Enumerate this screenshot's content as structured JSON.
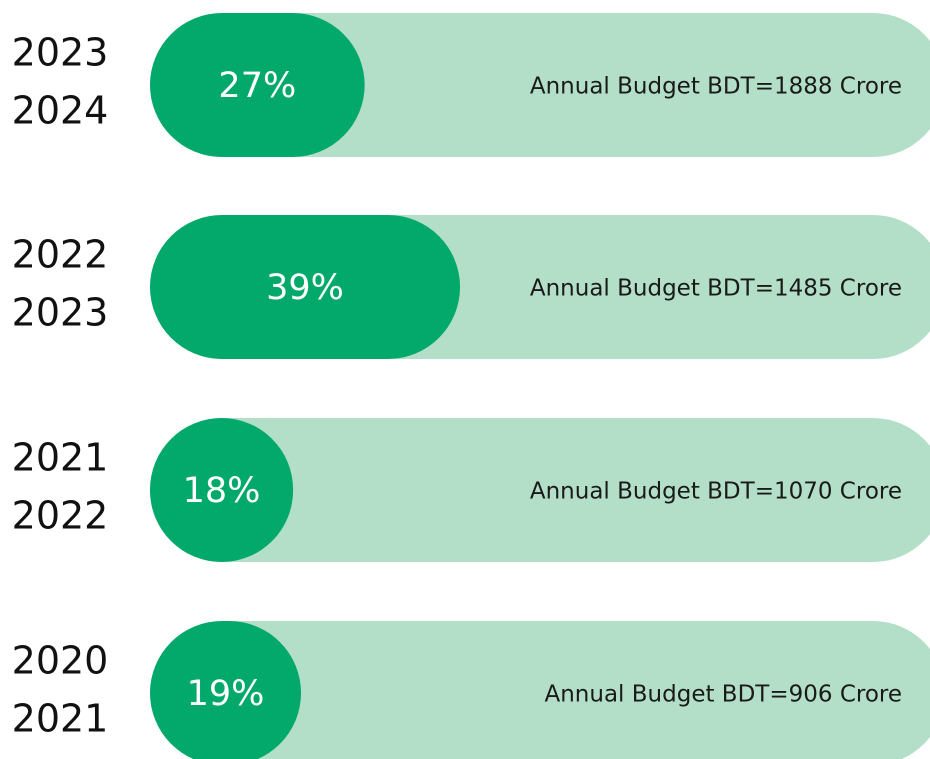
{
  "chart_data": {
    "type": "bar",
    "categories": [
      [
        "2023",
        "2024"
      ],
      [
        "2022",
        "2023"
      ],
      [
        "2021",
        "2022"
      ],
      [
        "2020",
        "2021"
      ]
    ],
    "values": [
      27,
      39,
      18,
      19
    ],
    "value_labels": [
      "27%",
      "39%",
      "18%",
      "19%"
    ],
    "annotations": [
      "Annual Budget BDT=1888 Crore",
      "Annual Budget BDT=1485 Crore",
      "Annual Budget BDT=1070 Crore",
      "Annual Budget BDT=906 Crore"
    ],
    "xlim": [
      0,
      100
    ],
    "color": "#03a96b",
    "track_color": "#b3dfc8"
  }
}
